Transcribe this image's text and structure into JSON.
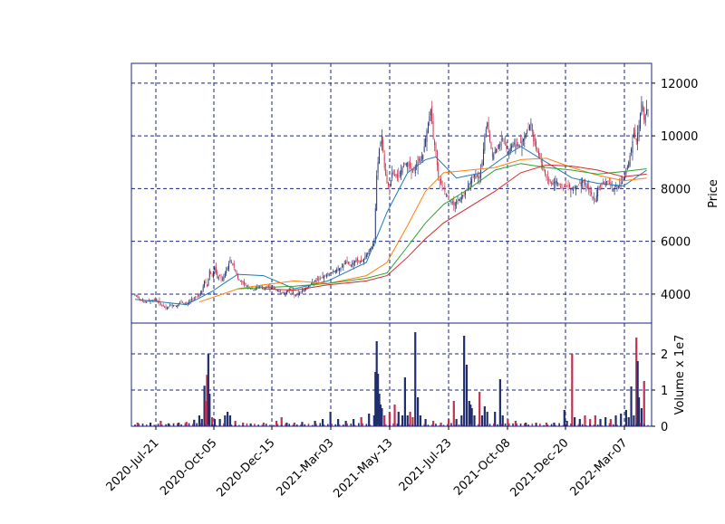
{
  "chart_data": [
    {
      "type": "candlestick",
      "panel": "price",
      "ylabel": "Price",
      "ylim": [
        2900,
        12750
      ],
      "yticks": [
        4000,
        6000,
        8000,
        10000,
        12000
      ],
      "x_tick_labels": [
        "2020-Jul-21",
        "2020-Oct-05",
        "2020-Dec-15",
        "2021-Mar-03",
        "2021-May-13",
        "2021-Jul-23",
        "2021-Oct-08",
        "2021-Dec-20",
        "2022-Mar-07"
      ],
      "grid": true,
      "colors": {
        "up": "#1f2e6e",
        "down": "#c0314f",
        "grid": "#1a237e",
        "axis": "#1a237e"
      },
      "close_series": [
        [
          0,
          3950
        ],
        [
          4,
          3800
        ],
        [
          8,
          3700
        ],
        [
          12,
          3750
        ],
        [
          16,
          3800
        ],
        [
          20,
          3600
        ],
        [
          24,
          3450
        ],
        [
          28,
          3600
        ],
        [
          32,
          3550
        ],
        [
          36,
          3700
        ],
        [
          40,
          3600
        ],
        [
          44,
          3800
        ],
        [
          48,
          3900
        ],
        [
          52,
          4100
        ],
        [
          54,
          4500
        ],
        [
          56,
          4300
        ],
        [
          58,
          4900
        ],
        [
          60,
          4700
        ],
        [
          62,
          5000
        ],
        [
          64,
          4600
        ],
        [
          66,
          4700
        ],
        [
          68,
          4500
        ],
        [
          70,
          4800
        ],
        [
          72,
          5000
        ],
        [
          74,
          5300
        ],
        [
          76,
          5100
        ],
        [
          78,
          4900
        ],
        [
          80,
          4600
        ],
        [
          84,
          4400
        ],
        [
          88,
          4250
        ],
        [
          92,
          4150
        ],
        [
          96,
          4300
        ],
        [
          100,
          4200
        ],
        [
          104,
          4300
        ],
        [
          108,
          4200
        ],
        [
          112,
          4100
        ],
        [
          116,
          4000
        ],
        [
          120,
          4200
        ],
        [
          124,
          3950
        ],
        [
          128,
          4050
        ],
        [
          132,
          4200
        ],
        [
          136,
          4350
        ],
        [
          140,
          4500
        ],
        [
          144,
          4600
        ],
        [
          148,
          4700
        ],
        [
          152,
          4800
        ],
        [
          156,
          4900
        ],
        [
          160,
          5000
        ],
        [
          164,
          5200
        ],
        [
          168,
          5100
        ],
        [
          172,
          5300
        ],
        [
          176,
          5200
        ],
        [
          180,
          5500
        ],
        [
          184,
          5800
        ],
        [
          186,
          6000
        ],
        [
          188,
          8500
        ],
        [
          190,
          9500
        ],
        [
          192,
          10000
        ],
        [
          194,
          8800
        ],
        [
          196,
          8200
        ],
        [
          198,
          8000
        ],
        [
          200,
          8600
        ],
        [
          204,
          8400
        ],
        [
          208,
          8800
        ],
        [
          212,
          9000
        ],
        [
          216,
          8600
        ],
        [
          220,
          9000
        ],
        [
          224,
          9300
        ],
        [
          228,
          10500
        ],
        [
          230,
          11000
        ],
        [
          232,
          9900
        ],
        [
          234,
          9400
        ],
        [
          236,
          8400
        ],
        [
          240,
          8000
        ],
        [
          244,
          7600
        ],
        [
          248,
          7400
        ],
        [
          252,
          7600
        ],
        [
          256,
          7800
        ],
        [
          260,
          8200
        ],
        [
          264,
          8500
        ],
        [
          268,
          8400
        ],
        [
          270,
          9000
        ],
        [
          272,
          10000
        ],
        [
          274,
          10500
        ],
        [
          276,
          9800
        ],
        [
          278,
          9200
        ],
        [
          282,
          9600
        ],
        [
          286,
          9900
        ],
        [
          290,
          9400
        ],
        [
          294,
          9700
        ],
        [
          298,
          9600
        ],
        [
          302,
          9900
        ],
        [
          306,
          10300
        ],
        [
          308,
          10500
        ],
        [
          310,
          9800
        ],
        [
          312,
          9500
        ],
        [
          316,
          9000
        ],
        [
          320,
          8400
        ],
        [
          324,
          8200
        ],
        [
          328,
          8300
        ],
        [
          332,
          8000
        ],
        [
          336,
          8100
        ],
        [
          340,
          8000
        ],
        [
          344,
          8100
        ],
        [
          348,
          8300
        ],
        [
          352,
          8000
        ],
        [
          356,
          7700
        ],
        [
          358,
          7500
        ],
        [
          360,
          8000
        ],
        [
          364,
          8200
        ],
        [
          368,
          8300
        ],
        [
          372,
          8000
        ],
        [
          376,
          8100
        ],
        [
          380,
          8300
        ],
        [
          384,
          9000
        ],
        [
          386,
          9500
        ],
        [
          388,
          10100
        ],
        [
          390,
          9800
        ],
        [
          392,
          10400
        ],
        [
          394,
          11300
        ],
        [
          396,
          10600
        ],
        [
          398,
          11000
        ]
      ],
      "moving_averages": [
        {
          "color": "#1f77b4",
          "points": [
            [
              0,
              3800
            ],
            [
              40,
              3600
            ],
            [
              60,
              4100
            ],
            [
              72,
              4500
            ],
            [
              80,
              4750
            ],
            [
              100,
              4700
            ],
            [
              124,
              4200
            ],
            [
              150,
              4500
            ],
            [
              180,
              5200
            ],
            [
              196,
              7100
            ],
            [
              212,
              8600
            ],
            [
              226,
              9100
            ],
            [
              234,
              9200
            ],
            [
              250,
              8400
            ],
            [
              270,
              8600
            ],
            [
              290,
              9300
            ],
            [
              300,
              9600
            ],
            [
              320,
              9000
            ],
            [
              340,
              8400
            ],
            [
              360,
              8200
            ],
            [
              380,
              8100
            ],
            [
              398,
              8700
            ]
          ]
        },
        {
          "color": "#ff7f0e",
          "points": [
            [
              50,
              3700
            ],
            [
              80,
              4200
            ],
            [
              100,
              4350
            ],
            [
              124,
              4500
            ],
            [
              150,
              4400
            ],
            [
              180,
              4700
            ],
            [
              196,
              5200
            ],
            [
              212,
              6600
            ],
            [
              226,
              7900
            ],
            [
              240,
              8600
            ],
            [
              260,
              8700
            ],
            [
              280,
              8800
            ],
            [
              300,
              9100
            ],
            [
              320,
              9150
            ],
            [
              340,
              8800
            ],
            [
              360,
              8500
            ],
            [
              380,
              8300
            ],
            [
              398,
              8400
            ]
          ]
        },
        {
          "color": "#2ca02c",
          "points": [
            [
              80,
              4200
            ],
            [
              100,
              4250
            ],
            [
              124,
              4300
            ],
            [
              150,
              4400
            ],
            [
              180,
              4600
            ],
            [
              196,
              4800
            ],
            [
              212,
              5800
            ],
            [
              226,
              6700
            ],
            [
              240,
              7400
            ],
            [
              260,
              8000
            ],
            [
              280,
              8700
            ],
            [
              300,
              8950
            ],
            [
              320,
              8800
            ],
            [
              340,
              8700
            ],
            [
              360,
              8550
            ],
            [
              380,
              8650
            ],
            [
              398,
              8750
            ]
          ]
        },
        {
          "color": "#d62728",
          "points": [
            [
              100,
              4200
            ],
            [
              124,
              4150
            ],
            [
              150,
              4350
            ],
            [
              180,
              4500
            ],
            [
              196,
              4700
            ],
            [
              212,
              5400
            ],
            [
              226,
              6100
            ],
            [
              240,
              6700
            ],
            [
              260,
              7300
            ],
            [
              280,
              7900
            ],
            [
              300,
              8600
            ],
            [
              320,
              8900
            ],
            [
              340,
              8850
            ],
            [
              360,
              8700
            ],
            [
              380,
              8450
            ],
            [
              398,
              8550
            ]
          ]
        }
      ]
    },
    {
      "type": "bar",
      "panel": "volume",
      "ylabel": "Volume x 1e7",
      "ylim": [
        0,
        2.85
      ],
      "yticks": [
        0,
        1,
        2
      ],
      "volume_series": [
        [
          2,
          0.1
        ],
        [
          12,
          0.1
        ],
        [
          20,
          0.15
        ],
        [
          26,
          0.08
        ],
        [
          34,
          0.1
        ],
        [
          40,
          0.12
        ],
        [
          46,
          0.18
        ],
        [
          50,
          0.3
        ],
        [
          52,
          0.2
        ],
        [
          54,
          1.12
        ],
        [
          55,
          0.7
        ],
        [
          56,
          1.42
        ],
        [
          57,
          2.0
        ],
        [
          58,
          0.9
        ],
        [
          60,
          0.25
        ],
        [
          62,
          0.2
        ],
        [
          66,
          0.2
        ],
        [
          70,
          0.3
        ],
        [
          72,
          0.4
        ],
        [
          74,
          0.3
        ],
        [
          78,
          0.15
        ],
        [
          84,
          0.1
        ],
        [
          90,
          0.08
        ],
        [
          100,
          0.1
        ],
        [
          110,
          0.15
        ],
        [
          114,
          0.25
        ],
        [
          118,
          0.1
        ],
        [
          124,
          0.1
        ],
        [
          130,
          0.12
        ],
        [
          140,
          0.15
        ],
        [
          146,
          0.2
        ],
        [
          152,
          0.4
        ],
        [
          158,
          0.2
        ],
        [
          164,
          0.15
        ],
        [
          170,
          0.2
        ],
        [
          176,
          0.25
        ],
        [
          182,
          0.35
        ],
        [
          186,
          0.3
        ],
        [
          187,
          1.5
        ],
        [
          188,
          2.35
        ],
        [
          189,
          1.45
        ],
        [
          190,
          0.9
        ],
        [
          191,
          0.6
        ],
        [
          192,
          0.5
        ],
        [
          194,
          0.3
        ],
        [
          198,
          0.4
        ],
        [
          202,
          0.6
        ],
        [
          205,
          0.4
        ],
        [
          208,
          0.3
        ],
        [
          210,
          1.35
        ],
        [
          212,
          0.3
        ],
        [
          214,
          0.4
        ],
        [
          216,
          0.25
        ],
        [
          218,
          2.6
        ],
        [
          220,
          0.8
        ],
        [
          222,
          0.3
        ],
        [
          226,
          0.2
        ],
        [
          232,
          0.15
        ],
        [
          238,
          0.1
        ],
        [
          244,
          0.2
        ],
        [
          248,
          0.7
        ],
        [
          250,
          0.2
        ],
        [
          254,
          0.3
        ],
        [
          256,
          2.5
        ],
        [
          258,
          1.7
        ],
        [
          260,
          0.7
        ],
        [
          261,
          0.6
        ],
        [
          262,
          0.5
        ],
        [
          264,
          0.3
        ],
        [
          268,
          0.95
        ],
        [
          270,
          0.3
        ],
        [
          272,
          0.55
        ],
        [
          274,
          0.4
        ],
        [
          280,
          0.4
        ],
        [
          284,
          1.3
        ],
        [
          286,
          0.3
        ],
        [
          290,
          0.2
        ],
        [
          296,
          0.15
        ],
        [
          304,
          0.1
        ],
        [
          312,
          0.1
        ],
        [
          320,
          0.1
        ],
        [
          326,
          0.1
        ],
        [
          334,
          0.45
        ],
        [
          336,
          0.15
        ],
        [
          340,
          2.0
        ],
        [
          342,
          0.25
        ],
        [
          346,
          0.2
        ],
        [
          350,
          0.3
        ],
        [
          354,
          0.2
        ],
        [
          358,
          0.3
        ],
        [
          362,
          0.2
        ],
        [
          366,
          0.25
        ],
        [
          370,
          0.2
        ],
        [
          374,
          0.3
        ],
        [
          378,
          0.35
        ],
        [
          382,
          0.45
        ],
        [
          384,
          0.25
        ],
        [
          386,
          1.1
        ],
        [
          388,
          0.3
        ],
        [
          390,
          2.45
        ],
        [
          391,
          1.8
        ],
        [
          392,
          0.8
        ],
        [
          394,
          0.5
        ],
        [
          396,
          1.25
        ]
      ]
    }
  ]
}
